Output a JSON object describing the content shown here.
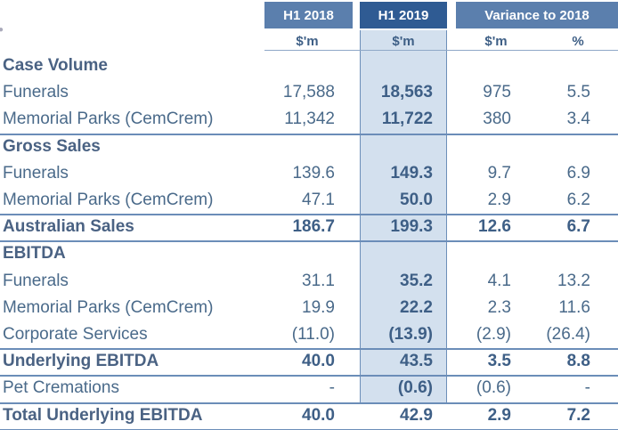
{
  "header": {
    "h1_2018": "H1 2018",
    "h1_2019": "H1 2019",
    "variance": "Variance to 2018",
    "units": [
      "$'m",
      "$'m",
      "$'m",
      "%"
    ]
  },
  "rows": [
    {
      "type": "section",
      "label": "Case Volume"
    },
    {
      "type": "data",
      "label": "Funerals",
      "h18": "17,588",
      "h19": "18,563",
      "var": "975",
      "pct": "5.5"
    },
    {
      "type": "data",
      "label": "Memorial Parks (CemCrem)",
      "h18": "11,342",
      "h19": "11,722",
      "var": "380",
      "pct": "3.4"
    },
    {
      "type": "section",
      "label": "Gross Sales"
    },
    {
      "type": "data",
      "label": "Funerals",
      "h18": "139.6",
      "h19": "149.3",
      "var": "9.7",
      "pct": "6.9"
    },
    {
      "type": "data",
      "label": "Memorial Parks (CemCrem)",
      "h18": "47.1",
      "h19": "50.0",
      "var": "2.9",
      "pct": "6.2"
    },
    {
      "type": "total",
      "label": "Australian Sales",
      "h18": "186.7",
      "h19": "199.3",
      "var": "12.6",
      "pct": "6.7"
    },
    {
      "type": "section",
      "label": "EBITDA"
    },
    {
      "type": "data",
      "label": "Funerals",
      "h18": "31.1",
      "h19": "35.2",
      "var": "4.1",
      "pct": "13.2"
    },
    {
      "type": "data",
      "label": "Memorial Parks (CemCrem)",
      "h18": "19.9",
      "h19": "22.2",
      "var": "2.3",
      "pct": "11.6"
    },
    {
      "type": "data",
      "label": "Corporate Services",
      "h18": "(11.0)",
      "h19": "(13.9)",
      "var": "(2.9)",
      "pct": "(26.4)"
    },
    {
      "type": "total",
      "label": "Underlying EBITDA",
      "h18": "40.0",
      "h19": "43.5",
      "var": "3.5",
      "pct": "8.8"
    },
    {
      "type": "data",
      "label": "Pet Cremations",
      "h18": "-",
      "h19": "(0.6)",
      "var": "(0.6)",
      "pct": "-"
    },
    {
      "type": "total",
      "label": "Total Underlying EBITDA",
      "h18": "40.0",
      "h19": "42.9",
      "var": "2.9",
      "pct": "7.2"
    }
  ]
}
